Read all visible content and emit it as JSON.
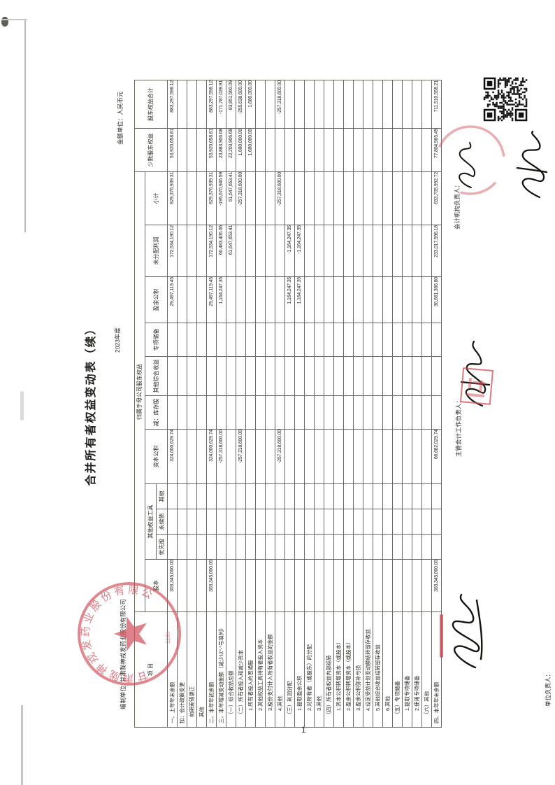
{
  "document": {
    "title": "合并所有者权益变动表（续）",
    "prepared_by_label": "编制单位:",
    "company": "甘肃陇神戎发药业股份有限公司",
    "period": "2023年度",
    "unit_note": "金额单位：人民币元",
    "page_number": "1"
  },
  "table": {
    "header": {
      "project": "项  目",
      "parent_group": "归属于母公司股东权益",
      "share_capital": "股本",
      "other_equity_instruments": "其他权益工具",
      "preferred": "优先股",
      "perpetual": "永续债",
      "other_instr": "其他",
      "capital_reserve": "资本公积",
      "less_treasury": "减：库存股",
      "oci": "其他综合收益",
      "special_reserve": "专项储备",
      "surplus_reserve": "盈余公积",
      "retained_earnings": "未分配利润",
      "subtotal": "小计",
      "minority": "少数股东权益",
      "total_equity": "股东权益合计"
    },
    "rows": [
      {
        "label": "一、上年年末余额",
        "indent": 0,
        "values": [
          "303,345,000.00",
          "",
          "",
          "",
          "324,000,629.74",
          "",
          "",
          "",
          "29,497,119.45",
          "172,534,190.12",
          "829,376,939.31",
          "53,920,658.81",
          "883,297,598.12"
        ]
      },
      {
        "label": "加：会计政策变更",
        "indent": 0,
        "values": [
          "",
          "",
          "",
          "",
          "",
          "",
          "",
          "",
          "",
          "",
          "",
          "",
          ""
        ]
      },
      {
        "label": "前期差错更正",
        "indent": 1,
        "values": [
          "",
          "",
          "",
          "",
          "",
          "",
          "",
          "",
          "",
          "",
          "",
          "",
          ""
        ]
      },
      {
        "label": "其他",
        "indent": 1,
        "values": [
          "",
          "",
          "",
          "",
          "",
          "",
          "",
          "",
          "",
          "",
          "",
          "",
          ""
        ]
      },
      {
        "label": "二、本年年初余额",
        "indent": 0,
        "values": [
          "303,345,000.00",
          "",
          "",
          "",
          "324,000,629.74",
          "",
          "",
          "",
          "29,497,119.45",
          "172,534,190.12",
          "829,376,939.31",
          "53,920,658.81",
          "883,297,598.12"
        ]
      },
      {
        "label": "三、本年增减变动金额（减少以“-”号填列）",
        "indent": 0,
        "values": [
          "",
          "",
          "",
          "",
          "-257,318,600.00",
          "",
          "",
          "",
          "1,164,247.35",
          "60,483,406.06",
          "-195,670,946.59",
          "23,883,906.68",
          "-171,787,039.91"
        ]
      },
      {
        "label": "（一）综合收益总额",
        "indent": 1,
        "values": [
          "",
          "",
          "",
          "",
          "",
          "",
          "",
          "",
          "",
          "61,647,653.41",
          "61,647,653.41",
          "22,203,906.68",
          "83,851,560.09"
        ]
      },
      {
        "label": "（二）所有者投入和减少资本",
        "indent": 1,
        "values": [
          "",
          "",
          "",
          "",
          "-257,318,600.00",
          "",
          "",
          "",
          "",
          "",
          "-257,318,600.00",
          "1,680,000.00",
          "-255,638,600.00"
        ]
      },
      {
        "label": "1.所有者投入的普通股",
        "indent": 2,
        "values": [
          "",
          "",
          "",
          "",
          "",
          "",
          "",
          "",
          "",
          "",
          "",
          "1,680,000.00",
          "1,680,000.00"
        ]
      },
      {
        "label": "2.其他权益工具持有者投入资本",
        "indent": 2,
        "values": [
          "",
          "",
          "",
          "",
          "",
          "",
          "",
          "",
          "",
          "",
          "",
          "",
          ""
        ]
      },
      {
        "label": "3.股份支付计入所有者权益的金额",
        "indent": 2,
        "values": [
          "",
          "",
          "",
          "",
          "",
          "",
          "",
          "",
          "",
          "",
          "",
          "",
          ""
        ]
      },
      {
        "label": "4.其他",
        "indent": 2,
        "values": [
          "",
          "",
          "",
          "",
          "-257,318,600.00",
          "",
          "",
          "",
          "",
          "",
          "-257,318,600.00",
          "",
          "-257,318,600.00"
        ]
      },
      {
        "label": "（三）利润分配",
        "indent": 1,
        "values": [
          "",
          "",
          "",
          "",
          "",
          "",
          "",
          "",
          "1,164,247.35",
          "-1,164,247.35",
          "",
          "",
          ""
        ]
      },
      {
        "label": "1.提取盈余公积",
        "indent": 2,
        "values": [
          "",
          "",
          "",
          "",
          "",
          "",
          "",
          "",
          "1,164,247.35",
          "-1,164,247.35",
          "",
          "",
          ""
        ]
      },
      {
        "label": "2.对所有者（或股东）的分配",
        "indent": 2,
        "values": [
          "",
          "",
          "",
          "",
          "",
          "",
          "",
          "",
          "",
          "",
          "",
          "",
          ""
        ]
      },
      {
        "label": "3.其他",
        "indent": 2,
        "values": [
          "",
          "",
          "",
          "",
          "",
          "",
          "",
          "",
          "",
          "",
          "",
          "",
          ""
        ]
      },
      {
        "label": "（四）所有者权益内部结转",
        "indent": 1,
        "values": [
          "",
          "",
          "",
          "",
          "",
          "",
          "",
          "",
          "",
          "",
          "",
          "",
          ""
        ]
      },
      {
        "label": "1.资本公积转增资本（或股本）",
        "indent": 2,
        "values": [
          "",
          "",
          "",
          "",
          "",
          "",
          "",
          "",
          "",
          "",
          "",
          "",
          ""
        ]
      },
      {
        "label": "2.盈余公积转增资本（或股本）",
        "indent": 2,
        "values": [
          "",
          "",
          "",
          "",
          "",
          "",
          "",
          "",
          "",
          "",
          "",
          "",
          ""
        ]
      },
      {
        "label": "3.盈余公积弥补亏损",
        "indent": 2,
        "values": [
          "",
          "",
          "",
          "",
          "",
          "",
          "",
          "",
          "",
          "",
          "",
          "",
          ""
        ]
      },
      {
        "label": "4.设定受益计划变动额结转留存收益",
        "indent": 2,
        "values": [
          "",
          "",
          "",
          "",
          "",
          "",
          "",
          "",
          "",
          "",
          "",
          "",
          ""
        ]
      },
      {
        "label": "5.其他综合收益结转留存收益",
        "indent": 2,
        "values": [
          "",
          "",
          "",
          "",
          "",
          "",
          "",
          "",
          "",
          "",
          "",
          "",
          ""
        ]
      },
      {
        "label": "6.其他",
        "indent": 2,
        "values": [
          "",
          "",
          "",
          "",
          "",
          "",
          "",
          "",
          "",
          "",
          "",
          "",
          ""
        ]
      },
      {
        "label": "（五）专项储备",
        "indent": 1,
        "values": [
          "",
          "",
          "",
          "",
          "",
          "",
          "",
          "",
          "",
          "",
          "",
          "",
          ""
        ]
      },
      {
        "label": "1.提取专项储备",
        "indent": 2,
        "values": [
          "",
          "",
          "",
          "",
          "",
          "",
          "",
          "",
          "",
          "",
          "",
          "",
          ""
        ]
      },
      {
        "label": "2.使用专项储备",
        "indent": 2,
        "values": [
          "",
          "",
          "",
          "",
          "",
          "",
          "",
          "",
          "",
          "",
          "",
          "",
          ""
        ]
      },
      {
        "label": "（六）其他",
        "indent": 1,
        "values": [
          "",
          "",
          "",
          "",
          "",
          "",
          "",
          "",
          "",
          "",
          "",
          "",
          ""
        ]
      },
      {
        "label": "四、本年年末余额",
        "indent": 0,
        "values": [
          "303,345,000.00",
          "",
          "",
          "",
          "66,682,029.74",
          "",
          "",
          "",
          "30,661,366.80",
          "233,017,596.18",
          "633,705,992.72",
          "77,804,565.49",
          "711,510,558.21"
        ]
      }
    ]
  },
  "footer": {
    "unit_head_label": "单位负责人：",
    "accounting_head_label": "主管会计工作负责人：",
    "accounting_dept_head_label": "会计机构负责人："
  },
  "seal": {
    "company": "甘肃陇神戎发药业股份有限公司",
    "serial": "1106",
    "color": "#d0505c"
  },
  "colors": {
    "stamp_red": "#d0505c",
    "ink": "#26261f",
    "grid": "#6b695f"
  }
}
